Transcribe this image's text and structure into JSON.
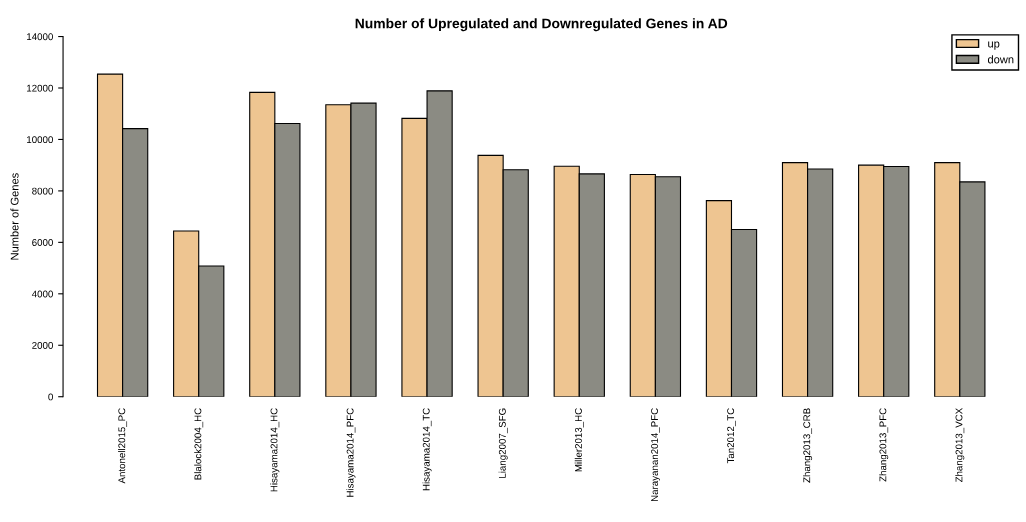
{
  "chart_data": {
    "type": "bar",
    "title": "Number of Upregulated and Downregulated Genes in AD",
    "ylabel": "Number of Genes",
    "categories": [
      "Antonell2015_PC",
      "Blalock2004_HC",
      "Hisayama2014_HC",
      "Hisayama2014_PFC",
      "Hisayama2014_TC",
      "Liang2007_SFG",
      "Miller2013_HC",
      "Narayanan2014_PFC",
      "Tan2012_TC",
      "Zhang2013_CRB",
      "Zhang2013_PFC",
      "Zhang2013_VCX"
    ],
    "series": [
      {
        "name": "up",
        "color": "#eec591",
        "values": [
          12540,
          6440,
          11830,
          11350,
          10820,
          9380,
          8960,
          8640,
          7620,
          9100,
          9000,
          9100
        ]
      },
      {
        "name": "down",
        "color": "#8b8b83",
        "values": [
          10420,
          5080,
          10620,
          11410,
          11890,
          8820,
          8660,
          8550,
          6500,
          8850,
          8950,
          8350
        ]
      }
    ],
    "ylim": [
      0,
      14000
    ],
    "yticks": [
      0,
      2000,
      4000,
      6000,
      8000,
      10000,
      12000,
      14000
    ],
    "grid": false,
    "legend": "top right"
  }
}
